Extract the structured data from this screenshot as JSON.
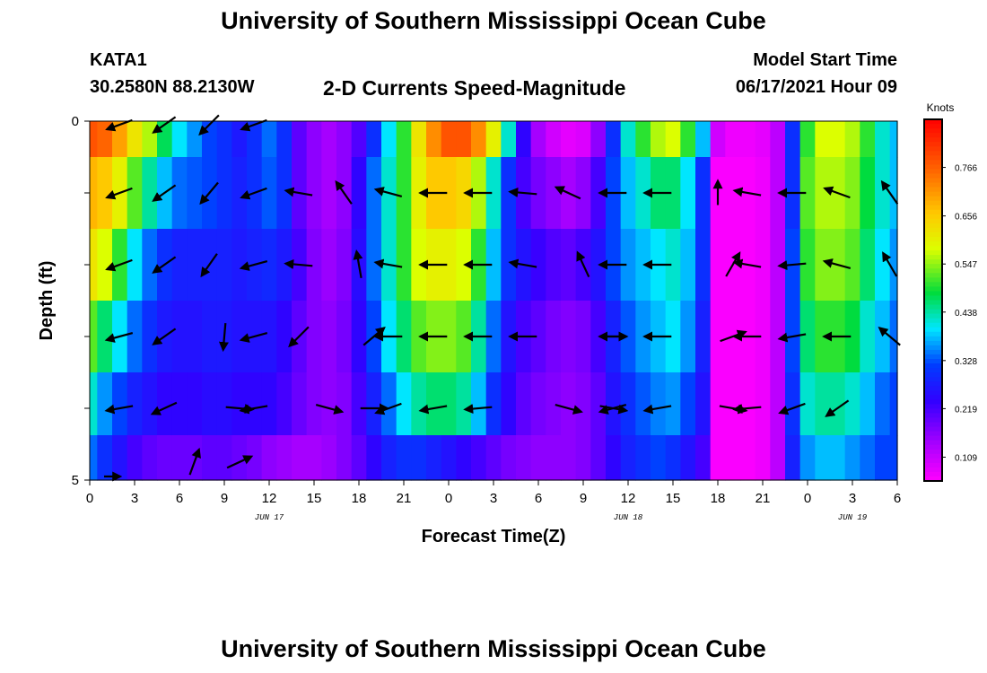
{
  "header": {
    "title": "University of Southern Mississippi Ocean Cube",
    "footer_title": "University of Southern Mississippi Ocean Cube",
    "station": "KATA1",
    "coords": "30.2580N  88.2130W",
    "plot_title": "2-D Currents Speed-Magnitude",
    "model_label": "Model Start Time",
    "model_time": "06/17/2021 Hour 09"
  },
  "chart_data": {
    "type": "heatmap",
    "title": "2-D Currents Speed-Magnitude",
    "xlabel": "Forecast Time(Z)",
    "ylabel": "Depth (ft)",
    "x_tick_labels": [
      "0",
      "3",
      "6",
      "9",
      "12",
      "15",
      "18",
      "21",
      "0",
      "3",
      "6",
      "9",
      "12",
      "15",
      "18",
      "21",
      "0",
      "3",
      "6"
    ],
    "x_range_hours": [
      0,
      54
    ],
    "y_range": [
      0,
      5
    ],
    "y_tick_labels": [
      "0",
      "",
      "",
      "",
      "",
      "5"
    ],
    "day_labels": [
      {
        "hour": 12,
        "text": "JUN 17"
      },
      {
        "hour": 36,
        "text": "JUN 18"
      },
      {
        "hour": 51,
        "text": "JUN 19"
      }
    ],
    "colorbar": {
      "units": "Knots",
      "min": 0.055,
      "max": 0.875,
      "tick_values": [
        0.766,
        0.656,
        0.547,
        0.438,
        0.328,
        0.219,
        0.109
      ],
      "tick_labels": [
        "0.766",
        "0.656",
        "0.547",
        "0.438",
        "0.328",
        "0.219",
        "0.109"
      ]
    },
    "depth_rows": [
      0.0,
      1.0,
      2.0,
      3.0,
      4.0,
      4.75
    ],
    "speed_knots_by_depth": [
      {
        "depth": 0.0,
        "time_hours": [
          0,
          1,
          2,
          3,
          4,
          5,
          6,
          7,
          8,
          9,
          10,
          11,
          12,
          13,
          14,
          15,
          16,
          17,
          18,
          19,
          20,
          21,
          22,
          23,
          24,
          25,
          26,
          27,
          28,
          29,
          30,
          31,
          32,
          33,
          34,
          35,
          36,
          37,
          38,
          39,
          40,
          41,
          42,
          43,
          44,
          45,
          46,
          47,
          48,
          49,
          50,
          51,
          52,
          53,
          54
        ],
        "values": [
          0.78,
          0.76,
          0.7,
          0.62,
          0.56,
          0.47,
          0.4,
          0.36,
          0.32,
          0.3,
          0.27,
          0.3,
          0.34,
          0.3,
          0.2,
          0.16,
          0.14,
          0.16,
          0.21,
          0.3,
          0.4,
          0.5,
          0.62,
          0.72,
          0.78,
          0.78,
          0.72,
          0.6,
          0.42,
          0.24,
          0.14,
          0.1,
          0.08,
          0.09,
          0.16,
          0.3,
          0.42,
          0.5,
          0.56,
          0.58,
          0.5,
          0.38,
          0.1,
          0.07,
          0.07,
          0.08,
          0.12,
          0.3,
          0.5,
          0.58,
          0.58,
          0.56,
          0.5,
          0.42,
          0.38
        ]
      },
      {
        "depth": 1.0,
        "time_hours": [
          0,
          1,
          2,
          3,
          4,
          5,
          6,
          7,
          8,
          9,
          10,
          11,
          12,
          13,
          14,
          15,
          16,
          17,
          18,
          19,
          20,
          21,
          22,
          23,
          24,
          25,
          26,
          27,
          28,
          29,
          30,
          31,
          32,
          33,
          34,
          35,
          36,
          37,
          38,
          39,
          40,
          41,
          42,
          43,
          44,
          45,
          46,
          47,
          48,
          49,
          50,
          51,
          52,
          53,
          54
        ],
        "values": [
          0.68,
          0.66,
          0.6,
          0.52,
          0.44,
          0.38,
          0.34,
          0.33,
          0.32,
          0.3,
          0.28,
          0.3,
          0.33,
          0.3,
          0.2,
          0.16,
          0.14,
          0.16,
          0.24,
          0.34,
          0.42,
          0.5,
          0.6,
          0.66,
          0.66,
          0.64,
          0.56,
          0.42,
          0.3,
          0.22,
          0.18,
          0.16,
          0.14,
          0.16,
          0.22,
          0.32,
          0.38,
          0.42,
          0.46,
          0.46,
          0.4,
          0.3,
          0.06,
          0.06,
          0.06,
          0.07,
          0.12,
          0.3,
          0.52,
          0.56,
          0.56,
          0.54,
          0.48,
          0.42,
          0.38
        ]
      },
      {
        "depth": 2.0,
        "time_hours": [
          0,
          1,
          2,
          3,
          4,
          5,
          6,
          7,
          8,
          9,
          10,
          11,
          12,
          13,
          14,
          15,
          16,
          17,
          18,
          19,
          20,
          21,
          22,
          23,
          24,
          25,
          26,
          27,
          28,
          29,
          30,
          31,
          32,
          33,
          34,
          35,
          36,
          37,
          38,
          39,
          40,
          41,
          42,
          43,
          44,
          45,
          46,
          47,
          48,
          49,
          50,
          51,
          52,
          53,
          54
        ],
        "values": [
          0.62,
          0.58,
          0.5,
          0.4,
          0.34,
          0.3,
          0.28,
          0.28,
          0.28,
          0.28,
          0.27,
          0.28,
          0.29,
          0.27,
          0.22,
          0.17,
          0.15,
          0.17,
          0.25,
          0.34,
          0.42,
          0.5,
          0.58,
          0.6,
          0.6,
          0.58,
          0.5,
          0.38,
          0.3,
          0.26,
          0.23,
          0.21,
          0.2,
          0.22,
          0.26,
          0.32,
          0.36,
          0.38,
          0.4,
          0.42,
          0.38,
          0.3,
          0.06,
          0.06,
          0.06,
          0.07,
          0.12,
          0.32,
          0.5,
          0.54,
          0.54,
          0.52,
          0.46,
          0.4,
          0.36
        ]
      },
      {
        "depth": 3.0,
        "time_hours": [
          0,
          1,
          2,
          3,
          4,
          5,
          6,
          7,
          8,
          9,
          10,
          11,
          12,
          13,
          14,
          15,
          16,
          17,
          18,
          19,
          20,
          21,
          22,
          23,
          24,
          25,
          26,
          27,
          28,
          29,
          30,
          31,
          32,
          33,
          34,
          35,
          36,
          37,
          38,
          39,
          40,
          41,
          42,
          43,
          44,
          45,
          46,
          47,
          48,
          49,
          50,
          51,
          52,
          53,
          54
        ],
        "values": [
          0.52,
          0.46,
          0.4,
          0.34,
          0.3,
          0.27,
          0.26,
          0.26,
          0.27,
          0.27,
          0.26,
          0.26,
          0.26,
          0.24,
          0.2,
          0.17,
          0.16,
          0.18,
          0.24,
          0.32,
          0.4,
          0.46,
          0.52,
          0.54,
          0.54,
          0.52,
          0.44,
          0.34,
          0.26,
          0.22,
          0.2,
          0.18,
          0.17,
          0.18,
          0.22,
          0.28,
          0.33,
          0.36,
          0.38,
          0.4,
          0.36,
          0.28,
          0.06,
          0.06,
          0.06,
          0.07,
          0.12,
          0.32,
          0.46,
          0.5,
          0.5,
          0.48,
          0.42,
          0.38,
          0.34
        ]
      },
      {
        "depth": 4.0,
        "time_hours": [
          0,
          1,
          2,
          3,
          4,
          5,
          6,
          7,
          8,
          9,
          10,
          11,
          12,
          13,
          14,
          15,
          16,
          17,
          18,
          19,
          20,
          21,
          22,
          23,
          24,
          25,
          26,
          27,
          28,
          29,
          30,
          31,
          32,
          33,
          34,
          35,
          36,
          37,
          38,
          39,
          40,
          41,
          42,
          43,
          44,
          45,
          46,
          47,
          48,
          49,
          50,
          51,
          52,
          53,
          54
        ],
        "values": [
          0.42,
          0.36,
          0.32,
          0.28,
          0.26,
          0.24,
          0.24,
          0.24,
          0.25,
          0.25,
          0.24,
          0.24,
          0.24,
          0.22,
          0.19,
          0.17,
          0.16,
          0.17,
          0.22,
          0.28,
          0.34,
          0.4,
          0.44,
          0.46,
          0.46,
          0.44,
          0.38,
          0.3,
          0.24,
          0.2,
          0.18,
          0.17,
          0.16,
          0.17,
          0.2,
          0.26,
          0.3,
          0.33,
          0.35,
          0.36,
          0.32,
          0.26,
          0.06,
          0.06,
          0.06,
          0.07,
          0.12,
          0.3,
          0.42,
          0.44,
          0.44,
          0.42,
          0.38,
          0.34,
          0.32
        ]
      },
      {
        "depth": 4.75,
        "time_hours": [
          0,
          1,
          2,
          3,
          4,
          5,
          6,
          7,
          8,
          9,
          10,
          11,
          12,
          13,
          14,
          15,
          16,
          17,
          18,
          19,
          20,
          21,
          22,
          23,
          24,
          25,
          26,
          27,
          28,
          29,
          30,
          31,
          32,
          33,
          34,
          35,
          36,
          37,
          38,
          39,
          40,
          41,
          42,
          43,
          44,
          45,
          46,
          47,
          48,
          49,
          50,
          51,
          52,
          53,
          54
        ],
        "values": [
          0.34,
          0.3,
          0.26,
          0.22,
          0.2,
          0.19,
          0.19,
          0.19,
          0.2,
          0.2,
          0.19,
          0.18,
          0.16,
          0.15,
          0.14,
          0.14,
          0.15,
          0.17,
          0.2,
          0.24,
          0.28,
          0.3,
          0.3,
          0.28,
          0.26,
          0.24,
          0.22,
          0.2,
          0.18,
          0.17,
          0.16,
          0.16,
          0.16,
          0.17,
          0.2,
          0.24,
          0.28,
          0.3,
          0.32,
          0.3,
          0.26,
          0.22,
          0.06,
          0.06,
          0.06,
          0.07,
          0.12,
          0.28,
          0.36,
          0.38,
          0.38,
          0.36,
          0.34,
          0.32,
          0.32
        ]
      }
    ],
    "vectors": [
      {
        "hour": 2,
        "depth": 0.05,
        "dir_deg": 200,
        "len": 1.0
      },
      {
        "hour": 5,
        "depth": 0.05,
        "dir_deg": 215,
        "len": 1.0
      },
      {
        "hour": 8,
        "depth": 0.05,
        "dir_deg": 225,
        "len": 1.0
      },
      {
        "hour": 11,
        "depth": 0.05,
        "dir_deg": 200,
        "len": 1.0
      },
      {
        "hour": 2,
        "depth": 1.0,
        "dir_deg": 200,
        "len": 1.0
      },
      {
        "hour": 5,
        "depth": 1.0,
        "dir_deg": 215,
        "len": 1.0
      },
      {
        "hour": 8,
        "depth": 1.0,
        "dir_deg": 230,
        "len": 1.0
      },
      {
        "hour": 11,
        "depth": 1.0,
        "dir_deg": 200,
        "len": 1.0
      },
      {
        "hour": 14,
        "depth": 1.0,
        "dir_deg": 170,
        "len": 1.0
      },
      {
        "hour": 17,
        "depth": 1.0,
        "dir_deg": 125,
        "len": 1.0
      },
      {
        "hour": 20,
        "depth": 1.0,
        "dir_deg": 165,
        "len": 1.0
      },
      {
        "hour": 23,
        "depth": 1.0,
        "dir_deg": 180,
        "len": 1.0
      },
      {
        "hour": 26,
        "depth": 1.0,
        "dir_deg": 180,
        "len": 1.0
      },
      {
        "hour": 29,
        "depth": 1.0,
        "dir_deg": 175,
        "len": 1.0
      },
      {
        "hour": 32,
        "depth": 1.0,
        "dir_deg": 155,
        "len": 1.0
      },
      {
        "hour": 35,
        "depth": 1.0,
        "dir_deg": 180,
        "len": 1.0
      },
      {
        "hour": 38,
        "depth": 1.0,
        "dir_deg": 180,
        "len": 1.0
      },
      {
        "hour": 42,
        "depth": 1.0,
        "dir_deg": 90,
        "len": 0.9
      },
      {
        "hour": 44,
        "depth": 1.0,
        "dir_deg": 170,
        "len": 1.0
      },
      {
        "hour": 47,
        "depth": 1.0,
        "dir_deg": 180,
        "len": 1.0
      },
      {
        "hour": 50,
        "depth": 1.0,
        "dir_deg": 160,
        "len": 1.0
      },
      {
        "hour": 53.5,
        "depth": 1.0,
        "dir_deg": 125,
        "len": 1.0
      },
      {
        "hour": 2,
        "depth": 2.0,
        "dir_deg": 200,
        "len": 1.0
      },
      {
        "hour": 5,
        "depth": 2.0,
        "dir_deg": 215,
        "len": 1.0
      },
      {
        "hour": 8,
        "depth": 2.0,
        "dir_deg": 235,
        "len": 1.0
      },
      {
        "hour": 11,
        "depth": 2.0,
        "dir_deg": 195,
        "len": 1.0
      },
      {
        "hour": 14,
        "depth": 2.0,
        "dir_deg": 175,
        "len": 1.0
      },
      {
        "hour": 18,
        "depth": 2.0,
        "dir_deg": 100,
        "len": 1.0
      },
      {
        "hour": 20,
        "depth": 2.0,
        "dir_deg": 170,
        "len": 1.0
      },
      {
        "hour": 23,
        "depth": 2.0,
        "dir_deg": 180,
        "len": 1.0
      },
      {
        "hour": 26,
        "depth": 2.0,
        "dir_deg": 180,
        "len": 1.0
      },
      {
        "hour": 29,
        "depth": 2.0,
        "dir_deg": 170,
        "len": 1.0
      },
      {
        "hour": 33,
        "depth": 2.0,
        "dir_deg": 115,
        "len": 1.0
      },
      {
        "hour": 35,
        "depth": 2.0,
        "dir_deg": 180,
        "len": 1.0
      },
      {
        "hour": 38,
        "depth": 2.0,
        "dir_deg": 180,
        "len": 1.0
      },
      {
        "hour": 43,
        "depth": 2.0,
        "dir_deg": 60,
        "len": 1.0
      },
      {
        "hour": 44,
        "depth": 2.0,
        "dir_deg": 170,
        "len": 1.0
      },
      {
        "hour": 47,
        "depth": 2.0,
        "dir_deg": 185,
        "len": 1.0
      },
      {
        "hour": 50,
        "depth": 2.0,
        "dir_deg": 165,
        "len": 1.0
      },
      {
        "hour": 53.5,
        "depth": 2.0,
        "dir_deg": 120,
        "len": 1.0
      },
      {
        "hour": 2,
        "depth": 3.0,
        "dir_deg": 195,
        "len": 1.0
      },
      {
        "hour": 5,
        "depth": 3.0,
        "dir_deg": 215,
        "len": 1.0
      },
      {
        "hour": 9,
        "depth": 3.0,
        "dir_deg": 265,
        "len": 1.0
      },
      {
        "hour": 11,
        "depth": 3.0,
        "dir_deg": 195,
        "len": 1.0
      },
      {
        "hour": 14,
        "depth": 3.0,
        "dir_deg": 225,
        "len": 1.0
      },
      {
        "hour": 19,
        "depth": 3.0,
        "dir_deg": 40,
        "len": 1.0
      },
      {
        "hour": 20,
        "depth": 3.0,
        "dir_deg": 180,
        "len": 1.0
      },
      {
        "hour": 23,
        "depth": 3.0,
        "dir_deg": 180,
        "len": 1.0
      },
      {
        "hour": 26,
        "depth": 3.0,
        "dir_deg": 180,
        "len": 1.0
      },
      {
        "hour": 29,
        "depth": 3.0,
        "dir_deg": 180,
        "len": 1.0
      },
      {
        "hour": 35,
        "depth": 3.0,
        "dir_deg": 0,
        "len": 1.0
      },
      {
        "hour": 35,
        "depth": 3.0,
        "dir_deg": 180,
        "len": 1.0
      },
      {
        "hour": 38,
        "depth": 3.0,
        "dir_deg": 180,
        "len": 1.0
      },
      {
        "hour": 43,
        "depth": 3.0,
        "dir_deg": 20,
        "len": 1.0
      },
      {
        "hour": 44,
        "depth": 3.0,
        "dir_deg": 180,
        "len": 1.0
      },
      {
        "hour": 47,
        "depth": 3.0,
        "dir_deg": 190,
        "len": 1.0
      },
      {
        "hour": 50,
        "depth": 3.0,
        "dir_deg": 180,
        "len": 1.0
      },
      {
        "hour": 53.5,
        "depth": 3.0,
        "dir_deg": 140,
        "len": 1.0
      },
      {
        "hour": 2,
        "depth": 4.0,
        "dir_deg": 190,
        "len": 1.0
      },
      {
        "hour": 5,
        "depth": 4.0,
        "dir_deg": 205,
        "len": 1.0
      },
      {
        "hour": 10,
        "depth": 4.0,
        "dir_deg": 355,
        "len": 1.0
      },
      {
        "hour": 11,
        "depth": 4.0,
        "dir_deg": 190,
        "len": 1.0
      },
      {
        "hour": 16,
        "depth": 4.0,
        "dir_deg": 345,
        "len": 1.0
      },
      {
        "hour": 19,
        "depth": 4.0,
        "dir_deg": 0,
        "len": 1.0
      },
      {
        "hour": 20,
        "depth": 4.0,
        "dir_deg": 200,
        "len": 1.0
      },
      {
        "hour": 23,
        "depth": 4.0,
        "dir_deg": 190,
        "len": 1.0
      },
      {
        "hour": 26,
        "depth": 4.0,
        "dir_deg": 185,
        "len": 1.0
      },
      {
        "hour": 32,
        "depth": 4.0,
        "dir_deg": 345,
        "len": 1.0
      },
      {
        "hour": 35,
        "depth": 4.0,
        "dir_deg": 195,
        "len": 1.0
      },
      {
        "hour": 35,
        "depth": 4.0,
        "dir_deg": 350,
        "len": 1.0
      },
      {
        "hour": 38,
        "depth": 4.0,
        "dir_deg": 190,
        "len": 1.0
      },
      {
        "hour": 43,
        "depth": 4.0,
        "dir_deg": 350,
        "len": 1.0
      },
      {
        "hour": 44,
        "depth": 4.0,
        "dir_deg": 185,
        "len": 1.0
      },
      {
        "hour": 47,
        "depth": 4.0,
        "dir_deg": 200,
        "len": 1.0
      },
      {
        "hour": 50,
        "depth": 4.0,
        "dir_deg": 215,
        "len": 1.0
      },
      {
        "hour": 1.5,
        "depth": 4.95,
        "dir_deg": 0,
        "len": 0.6
      },
      {
        "hour": 7,
        "depth": 4.75,
        "dir_deg": 70,
        "len": 1.0
      },
      {
        "hour": 10,
        "depth": 4.75,
        "dir_deg": 25,
        "len": 1.0
      }
    ]
  }
}
